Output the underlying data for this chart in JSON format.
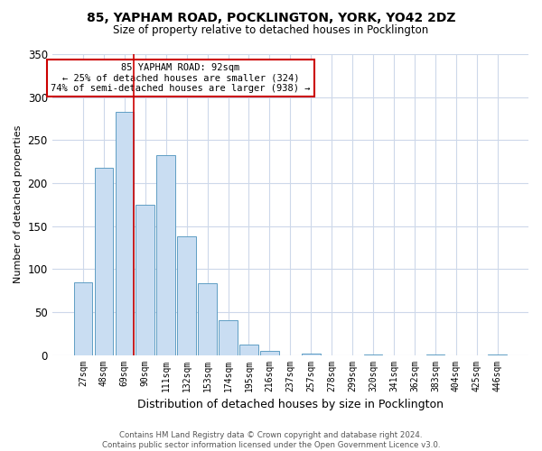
{
  "title": "85, YAPHAM ROAD, POCKLINGTON, YORK, YO42 2DZ",
  "subtitle": "Size of property relative to detached houses in Pocklington",
  "xlabel": "Distribution of detached houses by size in Pocklington",
  "ylabel": "Number of detached properties",
  "bar_labels": [
    "27sqm",
    "48sqm",
    "69sqm",
    "90sqm",
    "111sqm",
    "132sqm",
    "153sqm",
    "174sqm",
    "195sqm",
    "216sqm",
    "237sqm",
    "257sqm",
    "278sqm",
    "299sqm",
    "320sqm",
    "341sqm",
    "362sqm",
    "383sqm",
    "404sqm",
    "425sqm",
    "446sqm"
  ],
  "bar_values": [
    85,
    218,
    283,
    175,
    232,
    138,
    84,
    40,
    12,
    5,
    0,
    2,
    0,
    0,
    1,
    0,
    0,
    1,
    0,
    0,
    1
  ],
  "bar_color": "#c9ddf2",
  "bar_edge_color": "#5f9ec4",
  "ylim": [
    0,
    350
  ],
  "yticks": [
    0,
    50,
    100,
    150,
    200,
    250,
    300,
    350
  ],
  "vline_color": "#cc0000",
  "annotation_title": "85 YAPHAM ROAD: 92sqm",
  "annotation_line1": "← 25% of detached houses are smaller (324)",
  "annotation_line2": "74% of semi-detached houses are larger (938) →",
  "annotation_box_color": "#cc0000",
  "footer1": "Contains HM Land Registry data © Crown copyright and database right 2024.",
  "footer2": "Contains public sector information licensed under the Open Government Licence v3.0.",
  "bg_color": "#ffffff",
  "grid_color": "#cdd8ea"
}
